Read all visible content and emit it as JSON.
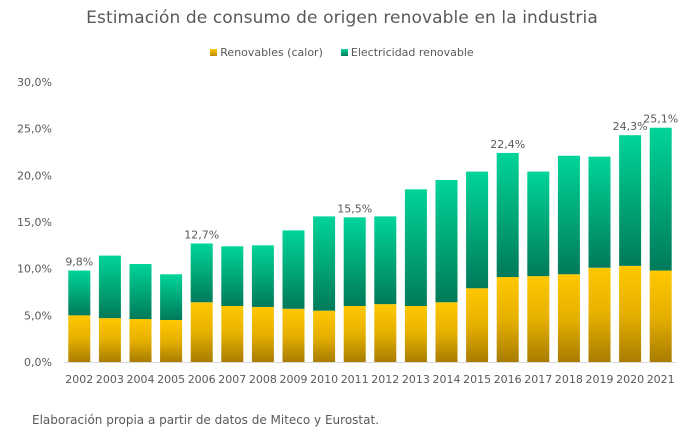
{
  "chart_data": {
    "type": "bar",
    "stacked": true,
    "title": "Estimación de consumo de origen renovable en la industria",
    "xlabel": "",
    "ylabel": "",
    "ylim": [
      0,
      30
    ],
    "yticks": [
      0,
      5,
      10,
      15,
      20,
      25,
      30
    ],
    "ytick_labels": [
      "0,0%",
      "5,0%",
      "10,0%",
      "15,0%",
      "20,0%",
      "25,0%",
      "30,0%"
    ],
    "grid": false,
    "legend_position": "top-center",
    "categories": [
      "2002",
      "2003",
      "2004",
      "2005",
      "2006",
      "2007",
      "2008",
      "2009",
      "2010",
      "2011",
      "2012",
      "2013",
      "2014",
      "2015",
      "2016",
      "2017",
      "2018",
      "2019",
      "2020",
      "2021"
    ],
    "series": [
      {
        "name": "Renovables (calor)",
        "color_top": "#ffc800",
        "color_bottom": "#a87c00",
        "values": [
          5.0,
          4.7,
          4.6,
          4.5,
          6.4,
          6.0,
          5.9,
          5.7,
          5.5,
          6.0,
          6.2,
          6.0,
          6.4,
          7.9,
          9.1,
          9.2,
          9.4,
          10.1,
          10.3,
          9.8
        ]
      },
      {
        "name": "Electricidad renovable",
        "color_top": "#00d49a",
        "color_bottom": "#007a5a",
        "values": [
          4.8,
          6.7,
          5.9,
          4.9,
          6.3,
          6.4,
          6.6,
          8.4,
          10.1,
          9.5,
          9.4,
          12.5,
          13.1,
          12.5,
          13.3,
          11.2,
          12.7,
          11.9,
          14.0,
          15.3
        ]
      }
    ],
    "totals": [
      9.8,
      11.4,
      10.5,
      9.4,
      12.7,
      12.4,
      12.5,
      14.1,
      15.6,
      15.5,
      15.6,
      18.5,
      19.5,
      20.4,
      22.4,
      20.4,
      22.1,
      22.0,
      24.3,
      25.1
    ],
    "annotations": [
      {
        "category": "2002",
        "label": "9,8%"
      },
      {
        "category": "2006",
        "label": "12,7%"
      },
      {
        "category": "2011",
        "label": "15,5%"
      },
      {
        "category": "2016",
        "label": "22,4%"
      },
      {
        "category": "2020",
        "label": "24,3%"
      },
      {
        "category": "2021",
        "label": "25,1%"
      }
    ]
  },
  "footer": {
    "source": "Elaboración propia a partir de datos de Miteco y Eurostat."
  }
}
